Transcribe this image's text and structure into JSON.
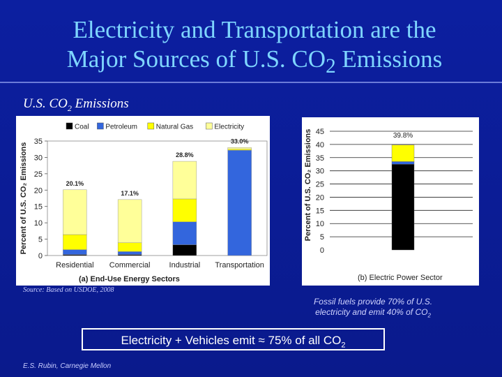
{
  "slide": {
    "title_line1": "Electricity and Transportation are the",
    "title_line2_pre": "Major Sources of U.S. CO",
    "title_line2_sub": "2",
    "title_line2_post": " Emissions",
    "subtitle_pre": "U.S. CO",
    "subtitle_sub": "2",
    "subtitle_post": " Emissions",
    "source": "Source: Based on USDOE, 2008",
    "note_line1": "Fossil fuels provide 70% of U.S.",
    "note_line2_pre": "electricity and emit 40% of CO",
    "note_line2_sub": "2",
    "callout_pre": "Electricity + Vehicles emit ≈ 75% of all CO",
    "callout_sub": "2",
    "credit": "E.S. Rubin, Carnegie Mellon"
  },
  "chart_data": [
    {
      "type": "bar",
      "stacked": true,
      "categories": [
        "Residential",
        "Commercial",
        "Industrial",
        "Transportation"
      ],
      "series": [
        {
          "name": "Coal",
          "color": "#000000",
          "values": [
            0.3,
            0.3,
            3.3,
            0
          ]
        },
        {
          "name": "Petroleum",
          "color": "#3366dd",
          "values": [
            1.5,
            0.9,
            7.0,
            32.2
          ]
        },
        {
          "name": "Natural Gas",
          "color": "#ffff00",
          "values": [
            4.6,
            2.7,
            7.0,
            0.3
          ]
        },
        {
          "name": "Electricity",
          "color": "#ffff99",
          "values": [
            13.7,
            13.2,
            11.5,
            0.5
          ]
        }
      ],
      "totals_labels": [
        "20.1%",
        "17.1%",
        "28.8%",
        "33.0%"
      ],
      "ylabel": "Percent of U.S. CO₂ Emissions",
      "xlabel": "(a)  End-Use Energy Sectors",
      "ylim": [
        0,
        35
      ],
      "yticks": [
        0,
        5,
        10,
        15,
        20,
        25,
        30,
        35
      ],
      "legend_position": "top"
    },
    {
      "type": "bar",
      "stacked": true,
      "categories": [
        ""
      ],
      "series": [
        {
          "name": "Coal",
          "color": "#000000",
          "values": [
            32.5
          ]
        },
        {
          "name": "Petroleum",
          "color": "#3366dd",
          "values": [
            1.0
          ]
        },
        {
          "name": "Natural Gas",
          "color": "#ffff00",
          "values": [
            6.3
          ]
        }
      ],
      "totals_labels": [
        "39.8%"
      ],
      "ylabel": "Percent of U.S. CO₂ Emissions",
      "xlabel": "(b)  Electric Power Sector",
      "ylim": [
        0,
        45
      ],
      "yticks": [
        0,
        5,
        10,
        15,
        20,
        25,
        30,
        35,
        40,
        45
      ],
      "grid": true
    }
  ]
}
